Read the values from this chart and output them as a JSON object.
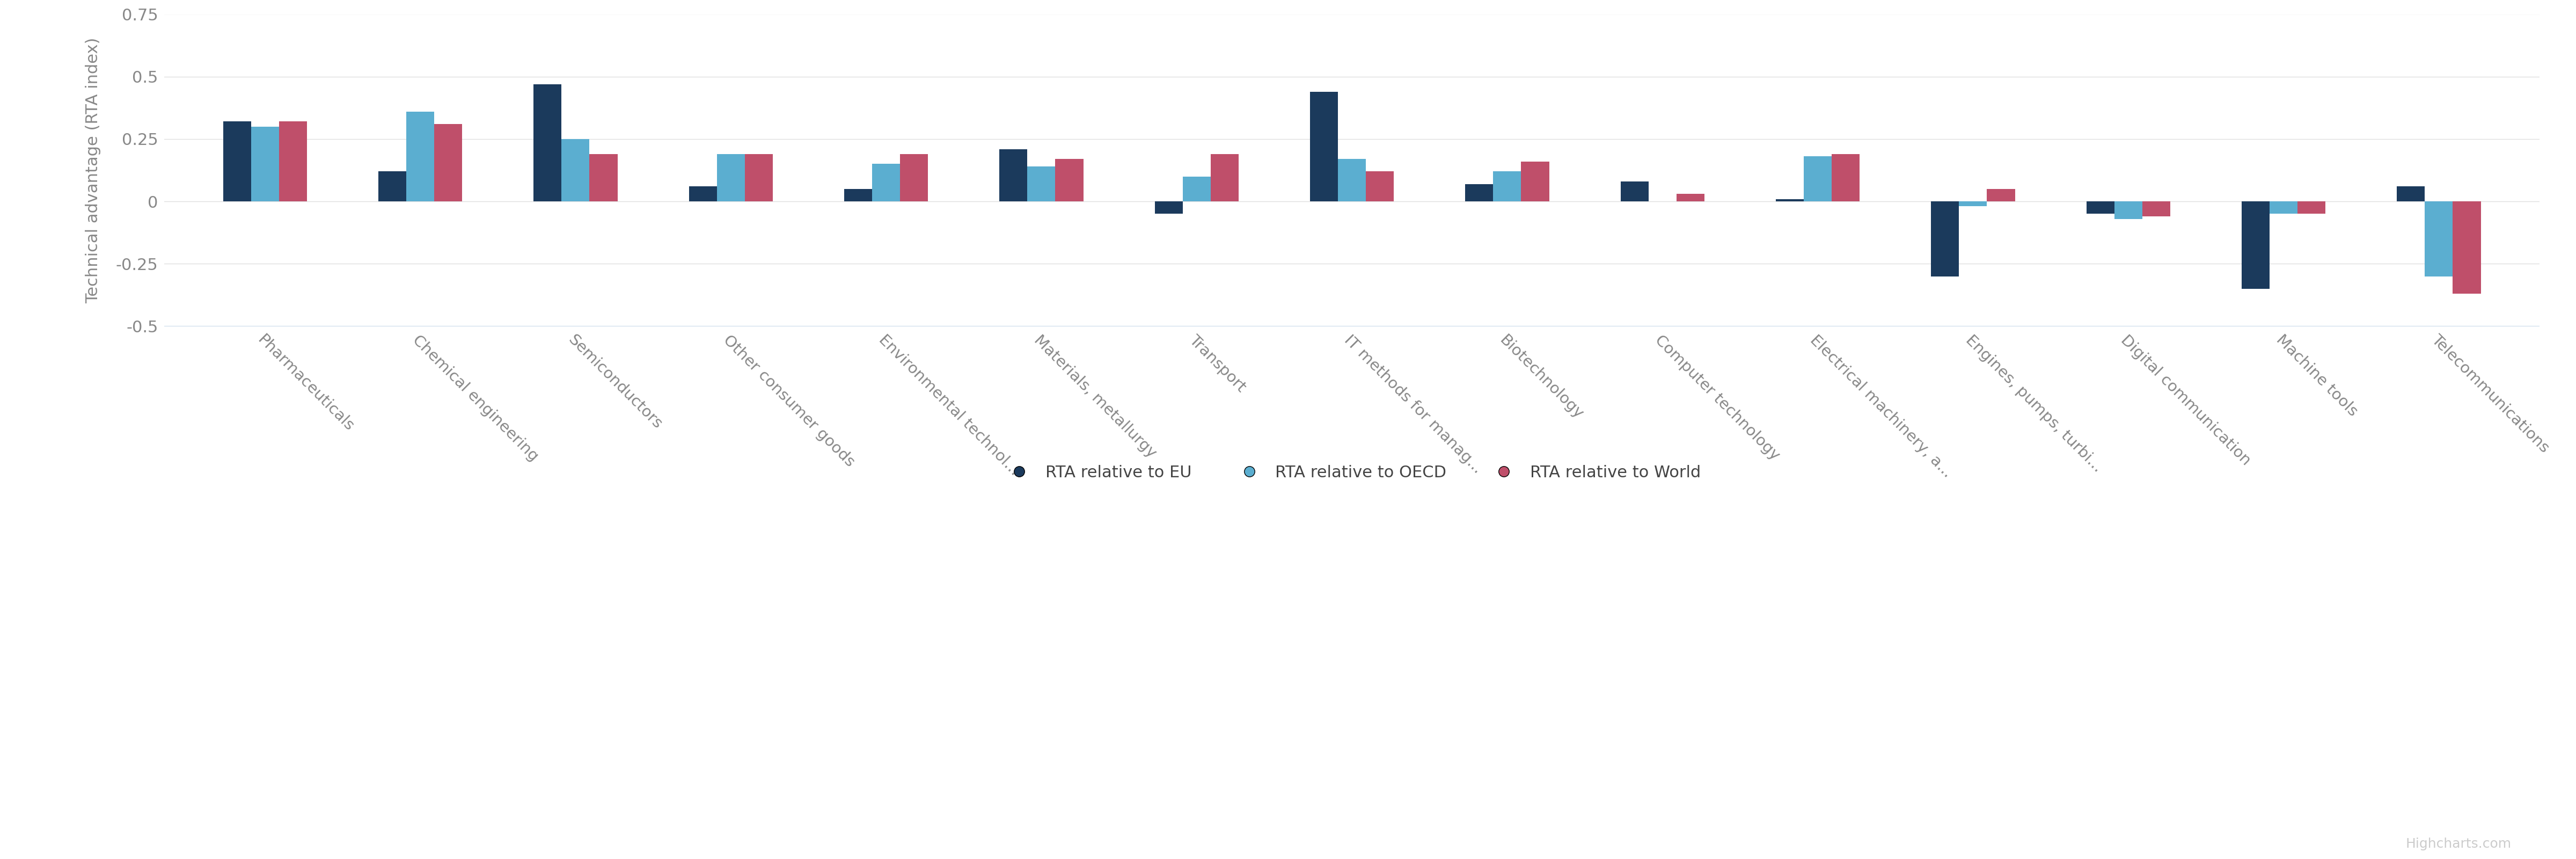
{
  "categories": [
    "Pharmaceuticals",
    "Chemical engineering",
    "Semiconductors",
    "Other consumer goods",
    "Environmental technol...",
    "Materials, metallurgy",
    "Transport",
    "IT methods for manag...",
    "Biotechnology",
    "Computer technology",
    "Electrical machinery, a...",
    "Engines, pumps, turbi...",
    "Digital communication",
    "Machine tools",
    "Telecommunications"
  ],
  "eu_values": [
    0.32,
    0.12,
    0.47,
    0.06,
    0.05,
    0.21,
    -0.05,
    0.44,
    0.07,
    0.08,
    0.01,
    -0.3,
    -0.05,
    -0.35,
    0.06
  ],
  "oecd_values": [
    0.3,
    0.36,
    0.25,
    0.19,
    0.15,
    0.14,
    0.1,
    0.17,
    0.12,
    0.0,
    0.18,
    -0.02,
    -0.07,
    -0.05,
    -0.3
  ],
  "world_values": [
    0.32,
    0.31,
    0.19,
    0.19,
    0.19,
    0.17,
    0.19,
    0.12,
    0.16,
    0.03,
    0.19,
    0.05,
    -0.06,
    -0.05,
    -0.37
  ],
  "eu_color": "#1b3a5c",
  "oecd_color": "#5baed0",
  "world_color": "#bf4f6a",
  "ylim": [
    -0.5,
    0.75
  ],
  "yticks": [
    -0.5,
    -0.25,
    0,
    0.25,
    0.5,
    0.75
  ],
  "ylabel": "Technical advantage (RTA index)",
  "legend_labels": [
    "RTA relative to EU",
    "RTA relative to OECD",
    "RTA relative to World"
  ],
  "bar_width": 0.18,
  "background_color": "#ffffff",
  "tick_label_color": "#888888",
  "axis_label_color": "#888888",
  "watermark": "Highcharts.com"
}
